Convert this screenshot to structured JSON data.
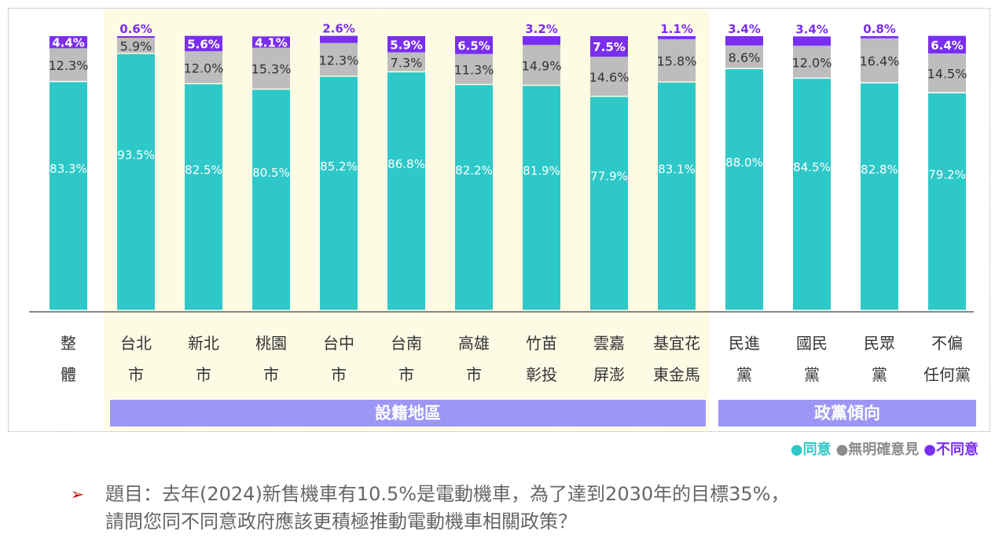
{
  "chart_data": {
    "type": "bar",
    "stacked": true,
    "categories": [
      "整\n體",
      "台北\n市",
      "新北\n市",
      "桃園\n市",
      "台中\n市",
      "台南\n市",
      "高雄\n市",
      "竹苗\n彰投",
      "雲嘉\n屏澎",
      "基宜花\n東金馬",
      "民進\n黨",
      "國民\n黨",
      "民眾\n黨",
      "不偏\n任何黨"
    ],
    "series": [
      {
        "name": "同意",
        "color": "#2ec8c8",
        "values": [
          83.3,
          93.5,
          82.5,
          80.5,
          85.2,
          86.8,
          82.2,
          81.9,
          77.9,
          83.1,
          88.0,
          84.5,
          82.8,
          79.2
        ]
      },
      {
        "name": "無明確意見",
        "color": "#bdbdbd",
        "values": [
          12.3,
          5.9,
          12.0,
          15.3,
          12.3,
          7.3,
          11.3,
          14.9,
          14.6,
          15.8,
          8.6,
          12.0,
          16.4,
          14.5
        ]
      },
      {
        "name": "不同意",
        "color": "#7a2ef2",
        "values": [
          4.4,
          0.6,
          5.6,
          4.1,
          2.6,
          5.9,
          6.5,
          3.2,
          7.5,
          1.1,
          3.4,
          3.4,
          0.8,
          6.4
        ]
      }
    ],
    "ylim": [
      0,
      100
    ],
    "groups": [
      {
        "label": "設籍地區",
        "from": 1,
        "to": 9,
        "highlight": "#fdfbe4",
        "band_color": "#9d96f5"
      },
      {
        "label": "政黨傾向",
        "from": 10,
        "to": 13,
        "band_color": "#9d96f5"
      }
    ],
    "legend_position": "bottom-right",
    "grid": false
  },
  "legend": [
    {
      "label": "同意",
      "color": "#2ec8c8"
    },
    {
      "label": "無明確意見",
      "color": "#8c8c8c"
    },
    {
      "label": "不同意",
      "color": "#7a2ef2"
    }
  ],
  "question": {
    "arrow": "➢",
    "text": "題目：去年(2024)新售機車有10.5%是電動機車，為了達到2030年的目標35%，\n請問您同不同意政府應該更積極推動電動機車相關政策？"
  }
}
